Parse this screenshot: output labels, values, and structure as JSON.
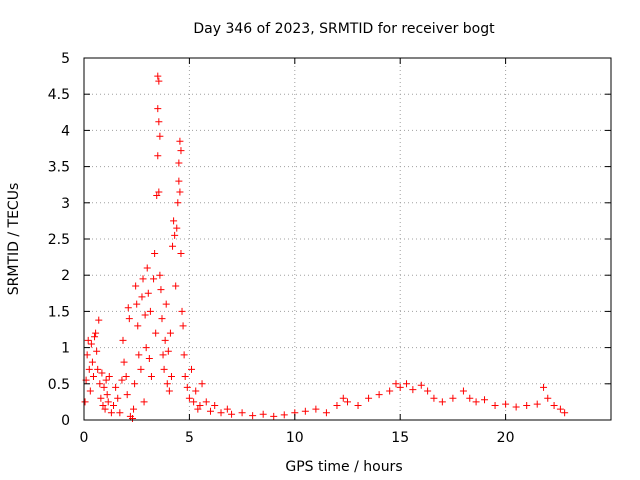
{
  "chart_data": {
    "type": "scatter",
    "title": "Day 346 of 2023, SRMTID for receiver bogt",
    "xlabel": "GPS time / hours",
    "ylabel": "SRMTID / TECUs",
    "xlim": [
      0,
      25
    ],
    "ylim": [
      0,
      5
    ],
    "xticks": [
      0,
      5,
      10,
      15,
      20
    ],
    "xtick_labels": [
      "0",
      "5",
      "10",
      "15",
      "20"
    ],
    "yticks": [
      0,
      0.5,
      1,
      1.5,
      2,
      2.5,
      3,
      3.5,
      4,
      4.5,
      5
    ],
    "ytick_labels": [
      "0",
      "0.5",
      "1",
      "1.5",
      "2",
      "2.5",
      "3",
      "3.5",
      "4",
      "4.5",
      "5"
    ],
    "grid": true,
    "marker": "+",
    "color": "#ff0000",
    "series": [
      {
        "name": "SRMTID",
        "points": [
          [
            0.05,
            0.25
          ],
          [
            0.1,
            0.55
          ],
          [
            0.15,
            0.9
          ],
          [
            0.2,
            1.1
          ],
          [
            0.25,
            0.7
          ],
          [
            0.3,
            0.4
          ],
          [
            0.35,
            1.05
          ],
          [
            0.4,
            0.8
          ],
          [
            0.45,
            0.6
          ],
          [
            0.5,
            1.15
          ],
          [
            0.55,
            1.2
          ],
          [
            0.6,
            0.95
          ],
          [
            0.65,
            0.7
          ],
          [
            0.7,
            1.38
          ],
          [
            0.75,
            0.5
          ],
          [
            0.8,
            0.3
          ],
          [
            0.85,
            0.65
          ],
          [
            0.9,
            0.2
          ],
          [
            0.95,
            0.45
          ],
          [
            1.0,
            0.15
          ],
          [
            1.05,
            0.55
          ],
          [
            1.1,
            0.35
          ],
          [
            1.15,
            0.25
          ],
          [
            1.2,
            0.6
          ],
          [
            1.3,
            0.1
          ],
          [
            1.4,
            0.2
          ],
          [
            1.5,
            0.45
          ],
          [
            1.6,
            0.3
          ],
          [
            1.7,
            0.1
          ],
          [
            1.8,
            0.55
          ],
          [
            1.85,
            1.1
          ],
          [
            1.9,
            0.8
          ],
          [
            2.0,
            0.6
          ],
          [
            2.05,
            0.35
          ],
          [
            2.1,
            1.55
          ],
          [
            2.15,
            1.4
          ],
          [
            2.2,
            0.05
          ],
          [
            2.3,
            0.02
          ],
          [
            2.35,
            0.15
          ],
          [
            2.4,
            0.5
          ],
          [
            2.45,
            1.85
          ],
          [
            2.5,
            1.6
          ],
          [
            2.55,
            1.3
          ],
          [
            2.6,
            0.9
          ],
          [
            2.7,
            0.7
          ],
          [
            2.75,
            1.7
          ],
          [
            2.8,
            1.95
          ],
          [
            2.85,
            0.25
          ],
          [
            2.9,
            1.45
          ],
          [
            2.95,
            1.0
          ],
          [
            3.0,
            2.1
          ],
          [
            3.05,
            1.75
          ],
          [
            3.1,
            0.85
          ],
          [
            3.15,
            1.5
          ],
          [
            3.2,
            0.6
          ],
          [
            3.3,
            1.95
          ],
          [
            3.35,
            2.3
          ],
          [
            3.4,
            1.2
          ],
          [
            3.45,
            3.1
          ],
          [
            3.5,
            4.75
          ],
          [
            3.55,
            4.68
          ],
          [
            3.5,
            4.3
          ],
          [
            3.55,
            4.12
          ],
          [
            3.6,
            3.92
          ],
          [
            3.5,
            3.65
          ],
          [
            3.55,
            3.15
          ],
          [
            3.6,
            2.0
          ],
          [
            3.65,
            1.8
          ],
          [
            3.7,
            1.4
          ],
          [
            3.75,
            0.9
          ],
          [
            3.8,
            0.7
          ],
          [
            3.85,
            1.1
          ],
          [
            3.9,
            1.6
          ],
          [
            3.95,
            0.5
          ],
          [
            4.0,
            0.95
          ],
          [
            4.05,
            0.4
          ],
          [
            4.1,
            1.2
          ],
          [
            4.15,
            0.6
          ],
          [
            4.2,
            2.4
          ],
          [
            4.25,
            2.75
          ],
          [
            4.3,
            2.55
          ],
          [
            4.35,
            1.85
          ],
          [
            4.4,
            2.65
          ],
          [
            4.45,
            3.0
          ],
          [
            4.5,
            3.55
          ],
          [
            4.55,
            3.85
          ],
          [
            4.6,
            3.72
          ],
          [
            4.5,
            3.3
          ],
          [
            4.55,
            3.15
          ],
          [
            4.6,
            2.3
          ],
          [
            4.65,
            1.5
          ],
          [
            4.7,
            1.3
          ],
          [
            4.75,
            0.9
          ],
          [
            4.8,
            0.6
          ],
          [
            4.9,
            0.45
          ],
          [
            5.0,
            0.3
          ],
          [
            5.1,
            0.7
          ],
          [
            5.2,
            0.25
          ],
          [
            5.3,
            0.4
          ],
          [
            5.4,
            0.15
          ],
          [
            5.5,
            0.2
          ],
          [
            5.6,
            0.5
          ],
          [
            5.8,
            0.25
          ],
          [
            6.0,
            0.12
          ],
          [
            6.2,
            0.2
          ],
          [
            6.5,
            0.1
          ],
          [
            6.8,
            0.15
          ],
          [
            7.0,
            0.08
          ],
          [
            7.5,
            0.1
          ],
          [
            8.0,
            0.06
          ],
          [
            8.5,
            0.08
          ],
          [
            9.0,
            0.05
          ],
          [
            9.5,
            0.07
          ],
          [
            10.0,
            0.1
          ],
          [
            10.5,
            0.12
          ],
          [
            11.0,
            0.15
          ],
          [
            11.5,
            0.1
          ],
          [
            12.0,
            0.2
          ],
          [
            12.3,
            0.3
          ],
          [
            12.5,
            0.25
          ],
          [
            13.0,
            0.2
          ],
          [
            13.5,
            0.3
          ],
          [
            14.0,
            0.35
          ],
          [
            14.5,
            0.4
          ],
          [
            14.8,
            0.5
          ],
          [
            15.0,
            0.45
          ],
          [
            15.3,
            0.5
          ],
          [
            15.6,
            0.42
          ],
          [
            16.0,
            0.48
          ],
          [
            16.3,
            0.4
          ],
          [
            16.6,
            0.3
          ],
          [
            17.0,
            0.25
          ],
          [
            17.5,
            0.3
          ],
          [
            18.0,
            0.4
          ],
          [
            18.3,
            0.3
          ],
          [
            18.6,
            0.25
          ],
          [
            19.0,
            0.28
          ],
          [
            19.5,
            0.2
          ],
          [
            20.0,
            0.22
          ],
          [
            20.5,
            0.18
          ],
          [
            21.0,
            0.2
          ],
          [
            21.5,
            0.22
          ],
          [
            21.8,
            0.45
          ],
          [
            22.0,
            0.3
          ],
          [
            22.3,
            0.2
          ],
          [
            22.6,
            0.15
          ],
          [
            22.8,
            0.1
          ]
        ]
      }
    ]
  }
}
